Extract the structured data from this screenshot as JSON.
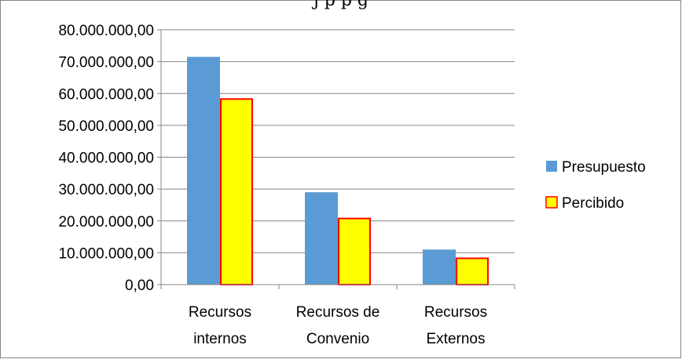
{
  "title_fragment": "j         p   p               g",
  "chart_data": {
    "type": "bar",
    "title": "",
    "xlabel": "",
    "ylabel": "",
    "categories": [
      [
        "Recursos",
        "internos"
      ],
      [
        "Recursos de",
        "Convenio"
      ],
      [
        "Recursos",
        "Externos"
      ]
    ],
    "series": [
      {
        "name": "Presupuesto",
        "values": [
          71500000,
          29000000,
          11000000
        ],
        "color": "#5b9bd5",
        "stroke": "#5b9bd5"
      },
      {
        "name": "Percibido",
        "values": [
          58500000,
          21000000,
          8500000
        ],
        "color": "#ffff00",
        "stroke": "#ff0000"
      }
    ],
    "ylim": [
      0,
      80000000
    ],
    "yticks": [
      "0,00",
      "10.000.000,00",
      "20.000.000,00",
      "30.000.000,00",
      "40.000.000,00",
      "50.000.000,00",
      "60.000.000,00",
      "70.000.000,00",
      "80.000.000,00"
    ],
    "grid": true,
    "legend_position": "right"
  }
}
